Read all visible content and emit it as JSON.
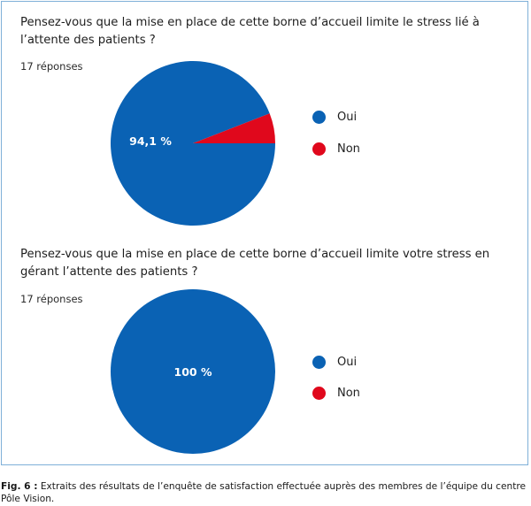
{
  "colors": {
    "oui": "#0a62b4",
    "non": "#e0081c"
  },
  "chart_data": [
    {
      "type": "pie",
      "title": "Pensez-vous que la mise en place de cette borne d’accueil limite le stress lié à l’attente des patients ?",
      "responses": "17 réponses",
      "slices": [
        {
          "name": "Oui",
          "value": 94.1,
          "label": "94,1 %"
        },
        {
          "name": "Non",
          "value": 5.9,
          "label": ""
        }
      ],
      "legend": [
        "Oui",
        "Non"
      ],
      "legend_position": "right"
    },
    {
      "type": "pie",
      "title": "Pensez-vous que la mise en place de cette borne d’accueil limite votre stress en gérant l’attente des patients ?",
      "responses": "17 réponses",
      "slices": [
        {
          "name": "Oui",
          "value": 100,
          "label": "100 %"
        },
        {
          "name": "Non",
          "value": 0,
          "label": ""
        }
      ],
      "legend": [
        "Oui",
        "Non"
      ],
      "legend_position": "right"
    }
  ],
  "caption": {
    "prefix": "Fig. 6 :",
    "text": " Extraits des résultats de l’enquête de satisfaction effectuée auprès des membres de l’équipe du centre Pôle Vision."
  }
}
